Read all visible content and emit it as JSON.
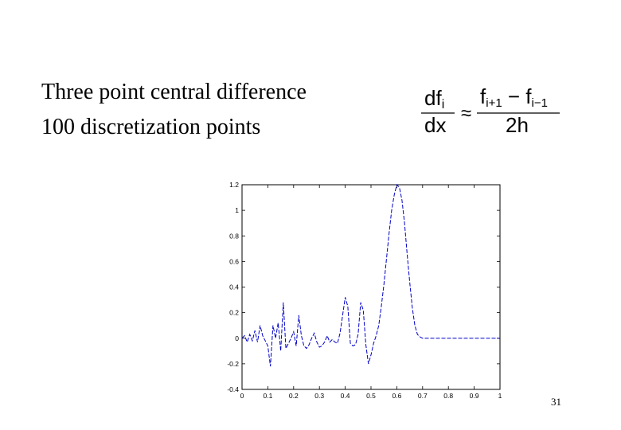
{
  "slide": {
    "lines": [
      "Three point central difference",
      "100 discretization points"
    ],
    "page_number": "31"
  },
  "formula": {
    "lhs_num": "df",
    "lhs_num_sub": "i",
    "lhs_den": "dx",
    "approx": "≈",
    "rhs_num_a": "f",
    "rhs_num_a_sub": "i+1",
    "rhs_minus": " − f",
    "rhs_num_b_sub": "i−1",
    "rhs_den": "2h"
  },
  "chart_data": {
    "type": "line",
    "xlim": [
      0,
      1
    ],
    "ylim": [
      -0.4,
      1.2
    ],
    "x_ticks": [
      "0",
      "0.1",
      "0.2",
      "0.3",
      "0.4",
      "0.5",
      "0.6",
      "0.7",
      "0.8",
      "0.9",
      "1"
    ],
    "y_ticks": [
      "-0.4",
      "-0.2",
      "0",
      "0.2",
      "0.4",
      "0.6",
      "0.8",
      "1",
      "1.2"
    ],
    "line_color": "#0000c8",
    "series": [
      {
        "x": [
          0.0,
          0.01,
          0.02,
          0.03,
          0.04,
          0.05,
          0.06,
          0.07,
          0.08,
          0.09,
          0.1,
          0.11,
          0.12,
          0.13,
          0.14,
          0.15,
          0.16,
          0.17,
          0.18,
          0.19,
          0.2,
          0.21,
          0.22,
          0.23,
          0.24,
          0.25,
          0.26,
          0.27,
          0.28,
          0.29,
          0.3,
          0.31,
          0.32,
          0.33,
          0.34,
          0.35,
          0.36,
          0.37,
          0.38,
          0.39,
          0.4,
          0.41,
          0.42,
          0.43,
          0.44,
          0.45,
          0.46,
          0.47,
          0.48,
          0.49,
          0.5,
          0.51,
          0.52,
          0.53,
          0.54,
          0.55,
          0.56,
          0.57,
          0.58,
          0.59,
          0.6,
          0.61,
          0.62,
          0.63,
          0.64,
          0.65,
          0.66,
          0.67,
          0.68,
          0.69,
          0.7,
          0.71,
          0.72,
          0.73,
          0.74,
          0.75,
          0.76,
          0.77,
          0.78,
          0.79,
          0.8,
          0.81,
          0.82,
          0.83,
          0.84,
          0.85,
          0.86,
          0.87,
          0.88,
          0.89,
          0.9,
          0.91,
          0.92,
          0.93,
          0.94,
          0.95,
          0.96,
          0.97,
          0.98,
          0.99,
          1.0
        ],
        "y": [
          0.0,
          0.02,
          -0.03,
          0.03,
          -0.02,
          0.06,
          -0.03,
          0.1,
          0.02,
          -0.02,
          -0.06,
          -0.22,
          0.1,
          0.0,
          0.12,
          -0.1,
          0.28,
          -0.08,
          -0.04,
          0.0,
          0.05,
          -0.06,
          0.18,
          0.02,
          -0.06,
          -0.08,
          -0.05,
          0.0,
          0.04,
          -0.03,
          -0.07,
          -0.06,
          -0.03,
          0.02,
          -0.03,
          -0.01,
          -0.03,
          -0.04,
          0.04,
          0.18,
          0.32,
          0.25,
          -0.04,
          -0.06,
          -0.05,
          0.03,
          0.28,
          0.22,
          -0.05,
          -0.2,
          -0.13,
          -0.04,
          0.02,
          0.1,
          0.25,
          0.42,
          0.62,
          0.82,
          1.0,
          1.12,
          1.2,
          1.18,
          1.08,
          0.9,
          0.66,
          0.44,
          0.24,
          0.1,
          0.03,
          0.01,
          0.0,
          0.0,
          0.0,
          0.0,
          0.0,
          0.0,
          0.0,
          0.0,
          0.0,
          0.0,
          0.0,
          0.0,
          0.0,
          0.0,
          0.0,
          0.0,
          0.0,
          0.0,
          0.0,
          0.0,
          0.0,
          0.0,
          0.0,
          0.0,
          0.0,
          0.0,
          0.0,
          0.0,
          0.0,
          0.0,
          0.0
        ]
      }
    ]
  }
}
